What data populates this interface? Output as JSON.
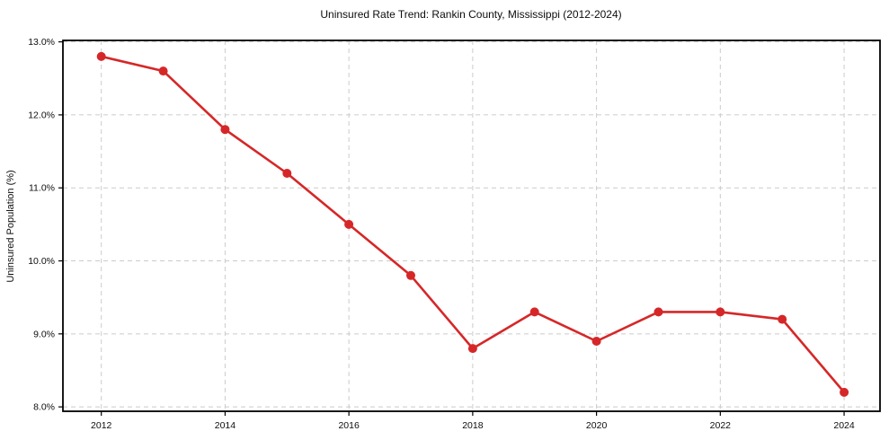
{
  "chart_data": {
    "type": "line",
    "title": "Uninsured Rate Trend: Rankin County, Mississippi (2012-2024)",
    "xlabel": "",
    "ylabel": "Uninsured Population (%)",
    "x": [
      2012,
      2013,
      2014,
      2015,
      2016,
      2017,
      2018,
      2019,
      2020,
      2021,
      2022,
      2023,
      2024
    ],
    "series": [
      {
        "name": "uninsured-rate",
        "color": "#d62728",
        "marker": "circle",
        "values": [
          12.8,
          12.6,
          11.8,
          11.2,
          10.5,
          9.8,
          8.8,
          9.3,
          8.9,
          9.3,
          9.3,
          9.2,
          8.2
        ]
      }
    ],
    "xticks": [
      2012,
      2014,
      2016,
      2018,
      2020,
      2022,
      2024
    ],
    "xtick_labels": [
      "2012",
      "2014",
      "2016",
      "2018",
      "2020",
      "2022",
      "2024"
    ],
    "yticks": [
      8,
      9,
      10,
      11,
      12,
      13
    ],
    "ytick_labels": [
      "8.0%",
      "9.0%",
      "10.0%",
      "11.0%",
      "12.0%",
      "13.0%"
    ],
    "xlim": [
      2011.38,
      2024.58
    ],
    "ylim": [
      7.94,
      13.02
    ],
    "grid": true,
    "grid_style": "dashed",
    "legend": "none",
    "colors": {
      "line": "#d62728",
      "grid": "#cbcbcb",
      "spine": "#000000",
      "text": "#0d0d0d",
      "background": "#ffffff"
    }
  }
}
